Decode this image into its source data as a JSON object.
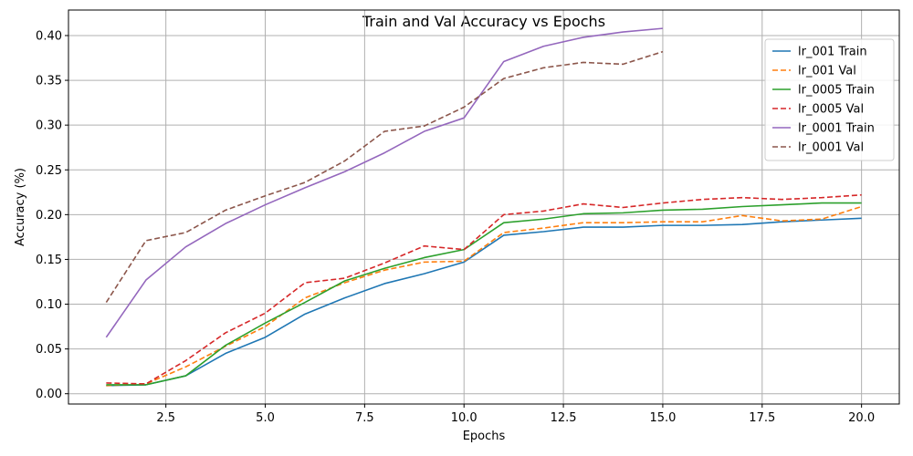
{
  "chart_data": {
    "type": "line",
    "title": "Train and Val Accuracy vs Epochs",
    "xlabel": "Epochs",
    "ylabel": "Accuracy (%)",
    "xlim": [
      0.05,
      20.95
    ],
    "ylim": [
      -0.0115,
      0.4285
    ],
    "xticks": [
      2.5,
      5.0,
      7.5,
      10.0,
      12.5,
      15.0,
      17.5,
      20.0
    ],
    "xtick_labels": [
      "2.5",
      "5.0",
      "7.5",
      "10.0",
      "12.5",
      "15.0",
      "17.5",
      "20.0"
    ],
    "yticks": [
      0.0,
      0.05,
      0.1,
      0.15,
      0.2,
      0.25,
      0.3,
      0.35,
      0.4
    ],
    "ytick_labels": [
      "0.00",
      "0.05",
      "0.10",
      "0.15",
      "0.20",
      "0.25",
      "0.30",
      "0.35",
      "0.40"
    ],
    "grid": true,
    "legend_position": "top-right",
    "series": [
      {
        "name": "lr_001 Train",
        "color": "#1f77b4",
        "dash": "solid",
        "x": [
          1,
          2,
          3,
          4,
          5,
          6,
          7,
          8,
          9,
          10,
          11,
          12,
          13,
          14,
          15,
          16,
          17,
          18,
          19,
          20
        ],
        "y": [
          0.009,
          0.01,
          0.02,
          0.045,
          0.063,
          0.089,
          0.107,
          0.123,
          0.134,
          0.147,
          0.177,
          0.181,
          0.186,
          0.186,
          0.188,
          0.188,
          0.189,
          0.192,
          0.194,
          0.196
        ]
      },
      {
        "name": "lr_001 Val",
        "color": "#ff7f0e",
        "dash": "dashed",
        "x": [
          1,
          2,
          3,
          4,
          5,
          6,
          7,
          8,
          9,
          10,
          11,
          12,
          13,
          14,
          15,
          16,
          17,
          18,
          19,
          20
        ],
        "y": [
          0.009,
          0.011,
          0.03,
          0.053,
          0.075,
          0.107,
          0.124,
          0.138,
          0.147,
          0.148,
          0.18,
          0.185,
          0.191,
          0.191,
          0.192,
          0.192,
          0.199,
          0.193,
          0.195,
          0.209
        ]
      },
      {
        "name": "lr_0005 Train",
        "color": "#2ca02c",
        "dash": "solid",
        "x": [
          1,
          2,
          3,
          4,
          5,
          6,
          7,
          8,
          9,
          10,
          11,
          12,
          13,
          14,
          15,
          16,
          17,
          18,
          19,
          20
        ],
        "y": [
          0.01,
          0.01,
          0.02,
          0.054,
          0.079,
          0.102,
          0.126,
          0.14,
          0.152,
          0.161,
          0.191,
          0.195,
          0.201,
          0.202,
          0.205,
          0.206,
          0.209,
          0.211,
          0.213,
          0.213
        ]
      },
      {
        "name": "lr_0005 Val",
        "color": "#d62728",
        "dash": "dashed",
        "x": [
          1,
          2,
          3,
          4,
          5,
          6,
          7,
          8,
          9,
          10,
          11,
          12,
          13,
          14,
          15,
          16,
          17,
          18,
          19,
          20
        ],
        "y": [
          0.012,
          0.011,
          0.037,
          0.068,
          0.09,
          0.124,
          0.129,
          0.146,
          0.165,
          0.161,
          0.2,
          0.204,
          0.212,
          0.208,
          0.213,
          0.217,
          0.219,
          0.217,
          0.219,
          0.222
        ]
      },
      {
        "name": "lr_0001 Train",
        "color": "#9467bd",
        "dash": "solid",
        "x": [
          1,
          2,
          3,
          4,
          5,
          6,
          7,
          8,
          9,
          10,
          11,
          12,
          13,
          14,
          15
        ],
        "y": [
          0.063,
          0.127,
          0.164,
          0.19,
          0.211,
          0.23,
          0.248,
          0.269,
          0.293,
          0.308,
          0.371,
          0.388,
          0.398,
          0.404,
          0.408
        ]
      },
      {
        "name": "lr_0001 Val",
        "color": "#8c564b",
        "dash": "dashed",
        "x": [
          1,
          2,
          3,
          4,
          5,
          6,
          7,
          8,
          9,
          10,
          11,
          12,
          13,
          14,
          15
        ],
        "y": [
          0.102,
          0.171,
          0.18,
          0.205,
          0.221,
          0.236,
          0.26,
          0.293,
          0.299,
          0.32,
          0.352,
          0.364,
          0.37,
          0.368,
          0.382
        ]
      }
    ]
  }
}
